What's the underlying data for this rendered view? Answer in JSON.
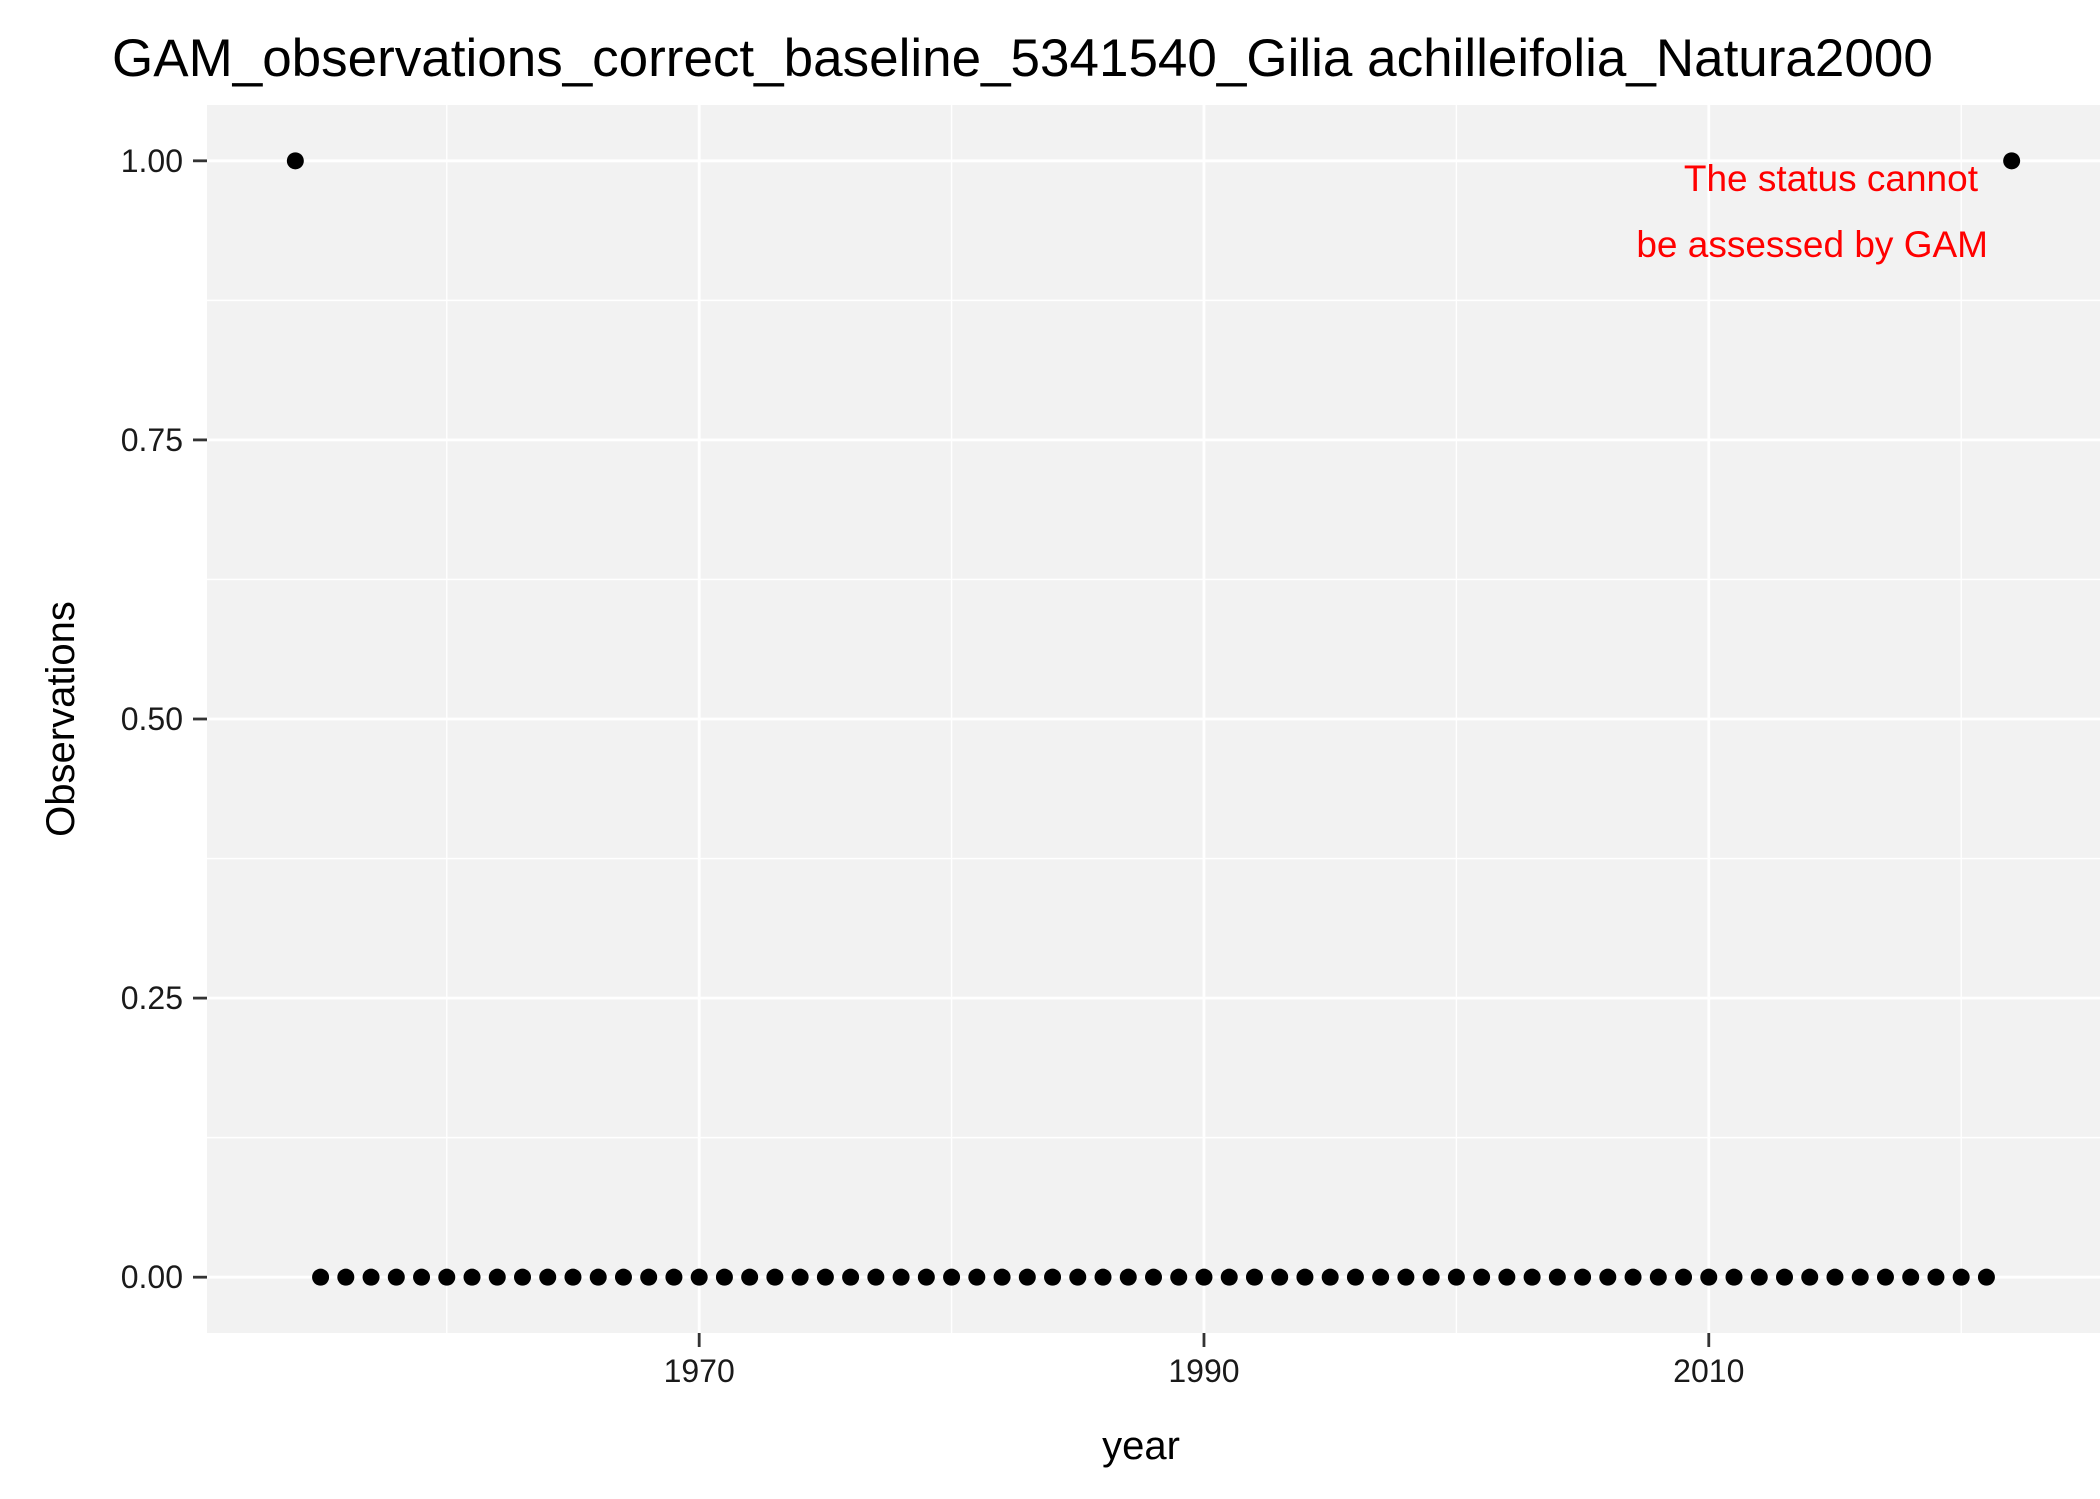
{
  "chart_data": {
    "type": "scatter",
    "title": "GAM_observations_correct_baseline_5341540_Gilia achilleifolia_Natura2000",
    "xlabel": "year",
    "ylabel": "Observations",
    "xlim": [
      1950.5,
      2025.5
    ],
    "ylim": [
      -0.05,
      1.05
    ],
    "x_ticks": [
      1970,
      1990,
      2010
    ],
    "x_tick_labels": [
      "1970",
      "1990",
      "2010"
    ],
    "y_ticks": [
      0,
      0.25,
      0.5,
      0.75,
      1.0
    ],
    "y_tick_labels": [
      "0.00",
      "0.25",
      "0.50",
      "0.75",
      "1.00"
    ],
    "grid": true,
    "panel_background": "#f2f2f2",
    "grid_color": "#ffffff",
    "point_color": "#000000",
    "annotation": {
      "lines": [
        "The status cannot",
        "be assessed by GAM"
      ],
      "color": "#ff0000",
      "placement": "top-right"
    },
    "series": [
      {
        "x": [
          1954,
          1955,
          1956,
          1957,
          1958,
          1959,
          1960,
          1961,
          1962,
          1963,
          1964,
          1965,
          1966,
          1967,
          1968,
          1969,
          1970,
          1971,
          1972,
          1973,
          1974,
          1975,
          1976,
          1977,
          1978,
          1979,
          1980,
          1981,
          1982,
          1983,
          1984,
          1985,
          1986,
          1987,
          1988,
          1989,
          1990,
          1991,
          1992,
          1993,
          1994,
          1995,
          1996,
          1997,
          1998,
          1999,
          2000,
          2001,
          2002,
          2003,
          2004,
          2005,
          2006,
          2007,
          2008,
          2009,
          2010,
          2011,
          2012,
          2013,
          2014,
          2015,
          2016,
          2017,
          2018,
          2019,
          2020,
          2021,
          2022
        ],
        "y": [
          1,
          0,
          0,
          0,
          0,
          0,
          0,
          0,
          0,
          0,
          0,
          0,
          0,
          0,
          0,
          0,
          0,
          0,
          0,
          0,
          0,
          0,
          0,
          0,
          0,
          0,
          0,
          0,
          0,
          0,
          0,
          0,
          0,
          0,
          0,
          0,
          0,
          0,
          0,
          0,
          0,
          0,
          0,
          0,
          0,
          0,
          0,
          0,
          0,
          0,
          0,
          0,
          0,
          0,
          0,
          0,
          0,
          0,
          0,
          0,
          0,
          0,
          0,
          0,
          0,
          0,
          0,
          0,
          1
        ]
      }
    ]
  }
}
